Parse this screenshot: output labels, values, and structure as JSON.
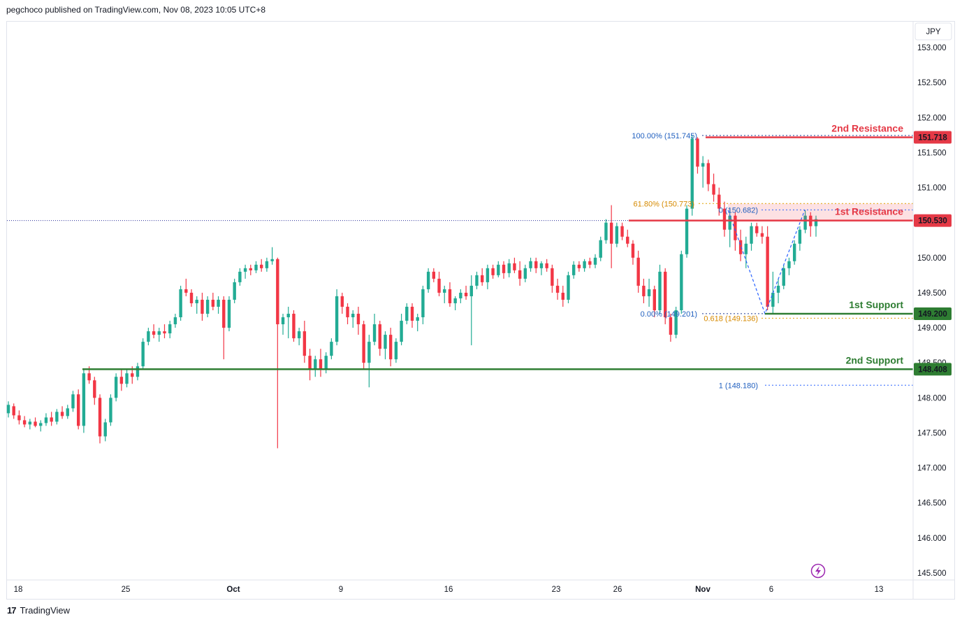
{
  "header": {
    "attribution": "pegchoco published on TradingView.com, Nov 08, 2023 10:05 UTC+8"
  },
  "footer": {
    "brand": "TradingView",
    "logo": "17"
  },
  "axis": {
    "currency": "JPY"
  },
  "chart_data": {
    "type": "candlestick",
    "symbol_currency": "JPY",
    "y_axis": {
      "range": [
        145.4,
        153.45
      ],
      "ticks": [
        145.5,
        146.0,
        146.5,
        147.0,
        147.5,
        148.0,
        148.5,
        149.0,
        149.5,
        150.0,
        150.5,
        151.0,
        151.5,
        152.0,
        152.5,
        153.0
      ],
      "tick_labels": [
        "145.500",
        "146.000",
        "146.500",
        "147.000",
        "147.500",
        "148.000",
        "148.500",
        "149.000",
        "149.500",
        "150.000",
        "150.500",
        "151.000",
        "151.500",
        "152.000",
        "152.500",
        "153.000"
      ]
    },
    "x_axis": {
      "tick_labels": [
        "18",
        "25",
        "Oct",
        "9",
        "16",
        "23",
        "26",
        "Nov",
        "6",
        "13"
      ]
    },
    "horizontal_levels": [
      {
        "name": "2nd Resistance",
        "value": 151.718,
        "price_label": "151.718",
        "color": "#e53946"
      },
      {
        "name": "1st Resistance",
        "value": 150.53,
        "price_label": "150.530",
        "color": "#e53946"
      },
      {
        "name": "1st Support",
        "value": 149.2,
        "price_label": "149.200",
        "color": "#2e7d32"
      },
      {
        "name": "2nd Support",
        "value": 148.408,
        "price_label": "148.408",
        "color": "#2e7d32"
      }
    ],
    "fibonacci_retracement": [
      {
        "label": "100.00% (151.745)",
        "value": 151.745
      },
      {
        "label": "61.80% (150.773)",
        "value": 150.773
      },
      {
        "label": "0.00% (149.201)",
        "value": 149.201
      }
    ],
    "fibonacci_extension": [
      {
        "label": "0 (150.682)",
        "value": 150.682
      },
      {
        "label": "0.618 (149.136)",
        "value": 149.136
      },
      {
        "label": "1 (148.180)",
        "value": 148.18
      }
    ],
    "current_price": 150.53,
    "colors": {
      "up": "#22ab94",
      "down": "#f23645",
      "resistance": "#e53946",
      "support": "#2e7d32",
      "fib": "#2962ff",
      "fib_golden": "#e0a100"
    },
    "candles": [
      [
        147.78,
        147.95,
        147.72,
        147.9
      ],
      [
        147.88,
        147.92,
        147.7,
        147.75
      ],
      [
        147.75,
        147.82,
        147.62,
        147.68
      ],
      [
        147.68,
        147.74,
        147.58,
        147.62
      ],
      [
        147.62,
        147.7,
        147.55,
        147.66
      ],
      [
        147.66,
        147.72,
        147.58,
        147.6
      ],
      [
        147.6,
        147.68,
        147.52,
        147.64
      ],
      [
        147.64,
        147.78,
        147.6,
        147.72
      ],
      [
        147.72,
        147.8,
        147.6,
        147.66
      ],
      [
        147.66,
        147.84,
        147.62,
        147.8
      ],
      [
        147.8,
        147.88,
        147.7,
        147.74
      ],
      [
        147.74,
        147.9,
        147.7,
        147.85
      ],
      [
        147.85,
        148.1,
        147.8,
        148.05
      ],
      [
        148.05,
        148.12,
        147.55,
        147.6
      ],
      [
        147.6,
        148.4,
        147.5,
        148.35
      ],
      [
        148.35,
        148.45,
        148.2,
        148.25
      ],
      [
        148.25,
        148.3,
        147.9,
        148.0
      ],
      [
        148.0,
        148.05,
        147.35,
        147.45
      ],
      [
        147.45,
        147.7,
        147.38,
        147.65
      ],
      [
        147.65,
        148.05,
        147.6,
        148.0
      ],
      [
        148.0,
        148.35,
        147.95,
        148.3
      ],
      [
        148.3,
        148.4,
        148.1,
        148.2
      ],
      [
        148.2,
        148.4,
        148.15,
        148.35
      ],
      [
        148.35,
        148.45,
        148.2,
        148.3
      ],
      [
        148.3,
        148.5,
        148.25,
        148.45
      ],
      [
        148.45,
        148.85,
        148.4,
        148.8
      ],
      [
        148.8,
        149.0,
        148.75,
        148.95
      ],
      [
        148.95,
        149.05,
        148.85,
        148.9
      ],
      [
        148.9,
        149.0,
        148.8,
        148.95
      ],
      [
        148.95,
        149.05,
        148.85,
        148.92
      ],
      [
        148.92,
        149.1,
        148.85,
        149.05
      ],
      [
        149.05,
        149.2,
        149.0,
        149.15
      ],
      [
        149.15,
        149.6,
        149.1,
        149.55
      ],
      [
        149.55,
        149.7,
        149.45,
        149.5
      ],
      [
        149.5,
        149.55,
        149.3,
        149.35
      ],
      [
        149.35,
        149.45,
        149.2,
        149.4
      ],
      [
        149.4,
        149.5,
        149.1,
        149.2
      ],
      [
        149.2,
        149.45,
        149.15,
        149.4
      ],
      [
        149.4,
        149.5,
        149.25,
        149.3
      ],
      [
        149.3,
        149.45,
        149.2,
        149.4
      ],
      [
        149.4,
        149.45,
        148.55,
        149.0
      ],
      [
        149.0,
        149.45,
        148.95,
        149.4
      ],
      [
        149.4,
        149.7,
        149.35,
        149.65
      ],
      [
        149.65,
        149.85,
        149.6,
        149.8
      ],
      [
        149.8,
        149.9,
        149.7,
        149.85
      ],
      [
        149.85,
        149.9,
        149.75,
        149.82
      ],
      [
        149.82,
        149.95,
        149.78,
        149.9
      ],
      [
        149.9,
        149.98,
        149.8,
        149.85
      ],
      [
        149.85,
        150.0,
        149.8,
        149.95
      ],
      [
        149.95,
        150.15,
        149.9,
        149.98
      ],
      [
        149.98,
        150.0,
        147.28,
        149.05
      ],
      [
        149.05,
        149.2,
        148.9,
        149.15
      ],
      [
        149.15,
        149.3,
        148.85,
        149.2
      ],
      [
        149.2,
        149.25,
        148.8,
        148.85
      ],
      [
        148.85,
        149.0,
        148.75,
        148.95
      ],
      [
        148.95,
        149.1,
        148.5,
        148.6
      ],
      [
        148.6,
        148.7,
        148.25,
        148.4
      ],
      [
        148.4,
        148.6,
        148.3,
        148.55
      ],
      [
        148.55,
        148.7,
        148.3,
        148.4
      ],
      [
        148.4,
        148.65,
        148.35,
        148.6
      ],
      [
        148.6,
        148.85,
        148.55,
        148.8
      ],
      [
        148.8,
        149.55,
        148.75,
        149.45
      ],
      [
        149.45,
        149.5,
        149.2,
        149.3
      ],
      [
        149.3,
        149.35,
        149.05,
        149.15
      ],
      [
        149.15,
        149.25,
        149.0,
        149.2
      ],
      [
        149.2,
        149.3,
        148.9,
        149.05
      ],
      [
        149.05,
        149.1,
        148.4,
        148.5
      ],
      [
        148.5,
        148.9,
        148.15,
        148.8
      ],
      [
        148.8,
        149.2,
        148.75,
        149.05
      ],
      [
        149.05,
        149.1,
        148.6,
        148.7
      ],
      [
        148.7,
        148.95,
        148.55,
        148.9
      ],
      [
        148.9,
        149.0,
        148.45,
        148.55
      ],
      [
        148.55,
        148.85,
        148.5,
        148.8
      ],
      [
        148.8,
        149.2,
        148.75,
        149.1
      ],
      [
        149.1,
        149.35,
        149.05,
        149.3
      ],
      [
        149.3,
        149.35,
        149.0,
        149.1
      ],
      [
        149.1,
        149.2,
        148.95,
        149.15
      ],
      [
        149.15,
        149.6,
        149.05,
        149.55
      ],
      [
        149.55,
        149.85,
        149.5,
        149.8
      ],
      [
        149.8,
        149.85,
        149.65,
        149.7
      ],
      [
        149.7,
        149.8,
        149.45,
        149.5
      ],
      [
        149.5,
        149.6,
        149.35,
        149.55
      ],
      [
        149.55,
        149.65,
        149.3,
        149.35
      ],
      [
        149.35,
        149.45,
        149.25,
        149.42
      ],
      [
        149.42,
        149.55,
        149.35,
        149.5
      ],
      [
        149.5,
        149.6,
        149.4,
        149.45
      ],
      [
        149.45,
        149.75,
        148.75,
        149.6
      ],
      [
        149.6,
        149.8,
        149.55,
        149.75
      ],
      [
        149.75,
        149.85,
        149.6,
        149.65
      ],
      [
        149.65,
        149.9,
        149.55,
        149.85
      ],
      [
        149.85,
        149.9,
        149.7,
        149.75
      ],
      [
        149.75,
        149.95,
        149.72,
        149.9
      ],
      [
        149.9,
        149.95,
        149.7,
        149.78
      ],
      [
        149.78,
        149.98,
        149.72,
        149.92
      ],
      [
        149.92,
        150.0,
        149.78,
        149.82
      ],
      [
        149.82,
        149.95,
        149.6,
        149.7
      ],
      [
        149.7,
        149.9,
        149.65,
        149.85
      ],
      [
        149.85,
        150.0,
        149.8,
        149.95
      ],
      [
        149.95,
        150.0,
        149.78,
        149.85
      ],
      [
        149.85,
        149.95,
        149.75,
        149.92
      ],
      [
        149.92,
        149.98,
        149.8,
        149.85
      ],
      [
        149.85,
        149.9,
        149.5,
        149.6
      ],
      [
        149.6,
        149.7,
        149.4,
        149.5
      ],
      [
        149.5,
        149.6,
        149.3,
        149.4
      ],
      [
        149.4,
        149.8,
        149.35,
        149.75
      ],
      [
        149.75,
        149.95,
        149.7,
        149.9
      ],
      [
        149.9,
        149.95,
        149.8,
        149.85
      ],
      [
        149.85,
        149.98,
        149.8,
        149.95
      ],
      [
        149.95,
        150.0,
        149.85,
        149.9
      ],
      [
        149.9,
        150.05,
        149.85,
        150.0
      ],
      [
        150.0,
        150.3,
        149.95,
        150.25
      ],
      [
        150.25,
        150.55,
        150.2,
        150.5
      ],
      [
        150.5,
        150.75,
        149.85,
        150.2
      ],
      [
        150.2,
        150.5,
        150.15,
        150.45
      ],
      [
        150.45,
        150.5,
        150.25,
        150.3
      ],
      [
        150.3,
        150.4,
        150.15,
        150.2
      ],
      [
        150.2,
        150.25,
        149.9,
        150.0
      ],
      [
        150.0,
        150.1,
        149.5,
        149.6
      ],
      [
        149.6,
        149.7,
        149.35,
        149.45
      ],
      [
        149.45,
        149.7,
        149.3,
        149.55
      ],
      [
        149.55,
        149.6,
        149.15,
        149.25
      ],
      [
        149.25,
        149.9,
        149.2,
        149.8
      ],
      [
        149.8,
        149.85,
        149.05,
        149.15
      ],
      [
        149.15,
        149.2,
        148.8,
        148.9
      ],
      [
        148.9,
        149.3,
        148.85,
        149.25
      ],
      [
        149.25,
        150.1,
        149.2,
        150.05
      ],
      [
        150.05,
        150.75,
        150.0,
        150.7
      ],
      [
        150.7,
        151.75,
        150.6,
        151.7
      ],
      [
        151.7,
        151.72,
        151.2,
        151.3
      ],
      [
        151.3,
        151.45,
        151.0,
        151.35
      ],
      [
        151.35,
        151.4,
        150.95,
        151.05
      ],
      [
        151.05,
        151.2,
        150.8,
        150.9
      ],
      [
        150.9,
        151.0,
        150.6,
        150.7
      ],
      [
        150.7,
        150.8,
        150.3,
        150.4
      ],
      [
        150.4,
        150.7,
        150.15,
        150.6
      ],
      [
        150.6,
        150.65,
        150.1,
        150.25
      ],
      [
        150.25,
        150.4,
        149.95,
        150.05
      ],
      [
        150.05,
        150.3,
        149.85,
        150.2
      ],
      [
        150.2,
        150.5,
        150.1,
        150.45
      ],
      [
        150.45,
        150.5,
        150.3,
        150.35
      ],
      [
        150.35,
        150.45,
        150.2,
        150.3
      ],
      [
        150.3,
        150.45,
        149.25,
        149.3
      ],
      [
        149.3,
        149.8,
        149.2,
        149.5
      ],
      [
        149.5,
        149.7,
        149.35,
        149.6
      ],
      [
        149.6,
        149.9,
        149.55,
        149.85
      ],
      [
        149.85,
        150.0,
        149.75,
        149.95
      ],
      [
        149.95,
        150.25,
        149.9,
        150.2
      ],
      [
        150.2,
        150.45,
        150.1,
        150.4
      ],
      [
        150.4,
        150.68,
        150.35,
        150.6
      ],
      [
        150.6,
        150.65,
        150.3,
        150.45
      ],
      [
        150.45,
        150.6,
        150.3,
        150.55
      ]
    ]
  }
}
